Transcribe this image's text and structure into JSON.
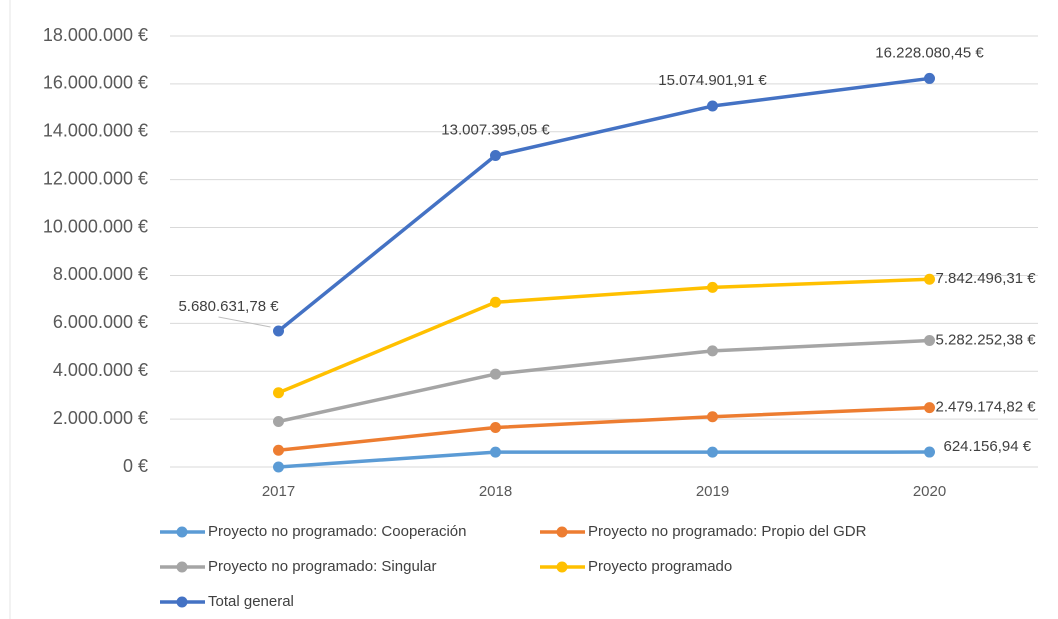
{
  "chart_data": {
    "type": "line",
    "categories": [
      "2017",
      "2018",
      "2019",
      "2020"
    ],
    "ylim": [
      0,
      18000000
    ],
    "yticks": [
      {
        "value": 0,
        "label": "0 €"
      },
      {
        "value": 2000000,
        "label": "2.000.000 €"
      },
      {
        "value": 4000000,
        "label": "4.000.000 €"
      },
      {
        "value": 6000000,
        "label": "6.000.000 €"
      },
      {
        "value": 8000000,
        "label": "8.000.000 €"
      },
      {
        "value": 10000000,
        "label": "10.000.000 €"
      },
      {
        "value": 12000000,
        "label": "12.000.000 €"
      },
      {
        "value": 14000000,
        "label": "14.000.000 €"
      },
      {
        "value": 16000000,
        "label": "16.000.000 €"
      },
      {
        "value": 18000000,
        "label": "18.000.000 €"
      }
    ],
    "grid": true,
    "legend": "bottom",
    "series": [
      {
        "name": "Proyecto no programado: Cooperación",
        "color": "#5b9bd5",
        "values": [
          0,
          620000,
          620000,
          624156.94
        ],
        "value_labels": [
          null,
          null,
          null,
          "624.156,94 €"
        ]
      },
      {
        "name": "Proyecto no programado: Propio del GDR",
        "color": "#ed7d31",
        "values": [
          700000,
          1650000,
          2100000,
          2479174.82
        ],
        "value_labels": [
          null,
          null,
          null,
          "2.479.174,82 €"
        ]
      },
      {
        "name": "Proyecto no programado: Singular",
        "color": "#a5a5a5",
        "values": [
          1900000,
          3880000,
          4850000,
          5282252.38
        ],
        "value_labels": [
          null,
          null,
          null,
          "5.282.252,38 €"
        ]
      },
      {
        "name": "Proyecto programado",
        "color": "#ffc000",
        "values": [
          3100000,
          6880000,
          7500000,
          7842496.31
        ],
        "value_labels": [
          null,
          null,
          null,
          "7.842.496,31 €"
        ]
      },
      {
        "name": "Total general",
        "color": "#4472c4",
        "values": [
          5680631.78,
          13007395.05,
          15074901.91,
          16228080.45
        ],
        "value_labels": [
          "5.680.631,78 €",
          "13.007.395,05 €",
          "15.074.901,91 €",
          "16.228.080,45 €"
        ]
      }
    ]
  }
}
